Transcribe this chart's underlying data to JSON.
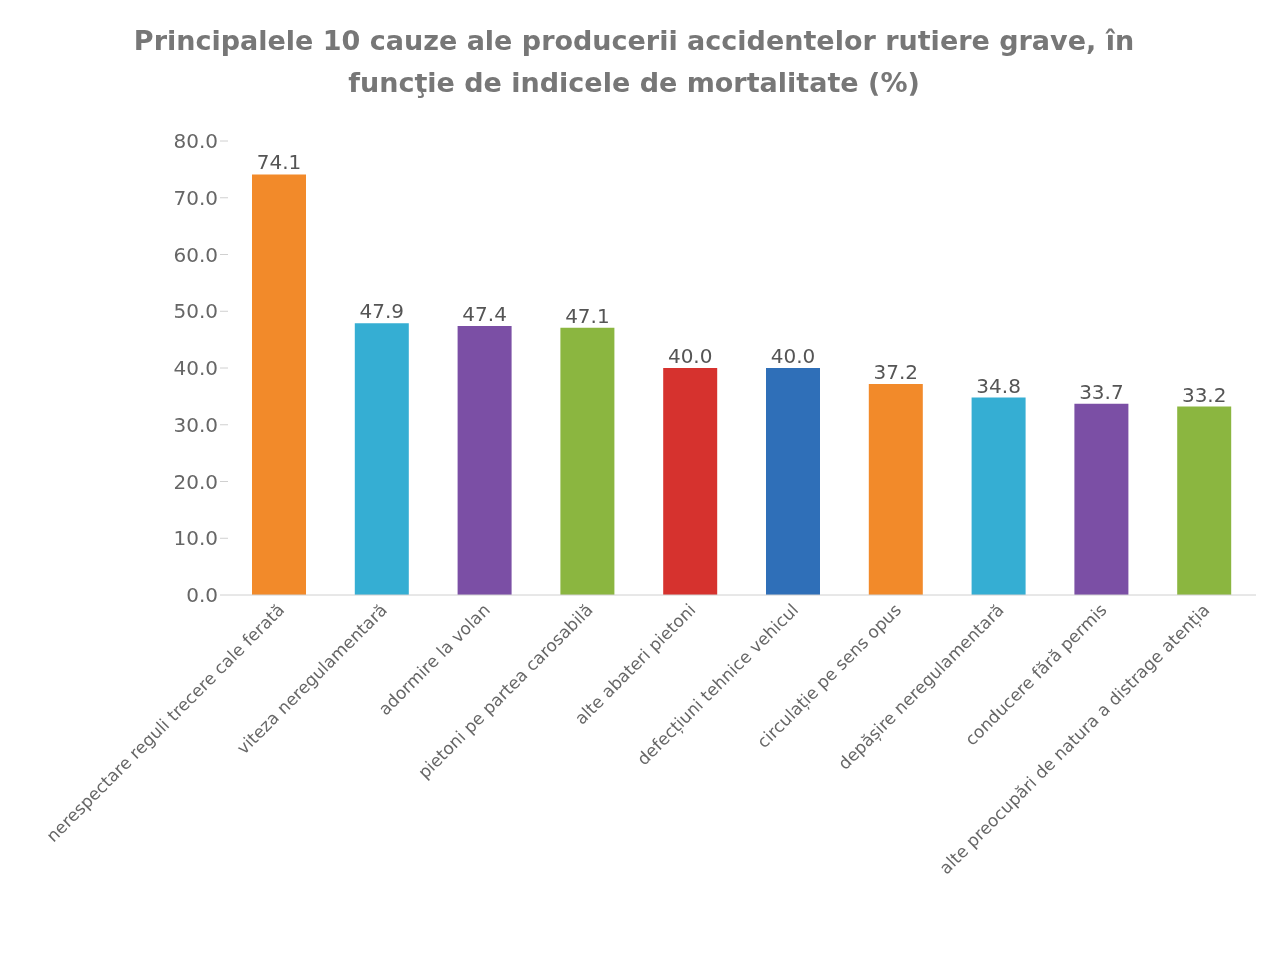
{
  "chart_data": {
    "type": "bar",
    "title": "Principalele 10 cauze ale producerii accidentelor rutiere grave, în funcţie de indicele de mortalitate (%)",
    "categories": [
      "nerespectare reguli trecere cale ferată",
      "viteza neregulamentară",
      "adormire la volan",
      "pietoni pe partea carosabilă",
      "alte abateri pietoni",
      "defecțiuni tehnice vehicul",
      "circulație pe sens opus",
      "depășire neregulamentară",
      "conducere fără permis",
      "alte preocupări de natura a distrage atenția"
    ],
    "values": [
      74.1,
      47.9,
      47.4,
      47.1,
      40.0,
      40.0,
      37.2,
      34.8,
      33.7,
      33.2
    ],
    "colors": [
      "#f28a2a",
      "#35aed3",
      "#7b4fa5",
      "#8bb640",
      "#d6322e",
      "#2f6fb8",
      "#f28a2a",
      "#35aed3",
      "#7b4fa5",
      "#8bb640"
    ],
    "ylim": [
      0,
      80
    ],
    "yticks": [
      {
        "value": 0,
        "label": "0.0"
      },
      {
        "value": 10,
        "label": "10.0"
      },
      {
        "value": 20,
        "label": "20.0"
      },
      {
        "value": 30,
        "label": "30.0"
      },
      {
        "value": 40,
        "label": "40.0"
      },
      {
        "value": 50,
        "label": "50.0"
      },
      {
        "value": 60,
        "label": "60.0"
      },
      {
        "value": 70,
        "label": "70.0"
      },
      {
        "value": 80,
        "label": "80.0"
      }
    ],
    "value_labels": [
      "74.1",
      "47.9",
      "47.4",
      "47.1",
      "40.0",
      "40.0",
      "37.2",
      "34.8",
      "33.7",
      "33.2"
    ],
    "grid": false
  }
}
